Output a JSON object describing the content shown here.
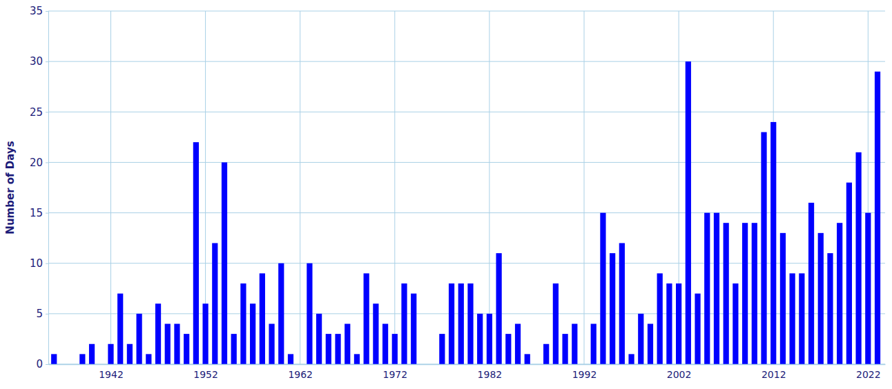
{
  "chart_data": {
    "type": "bar",
    "y_label": "Number of Days",
    "x": [
      1936,
      1937,
      1938,
      1939,
      1940,
      1941,
      1942,
      1943,
      1944,
      1945,
      1946,
      1947,
      1948,
      1949,
      1950,
      1951,
      1952,
      1953,
      1954,
      1955,
      1956,
      1957,
      1958,
      1959,
      1960,
      1961,
      1962,
      1963,
      1964,
      1965,
      1966,
      1967,
      1968,
      1969,
      1970,
      1971,
      1972,
      1973,
      1974,
      1975,
      1976,
      1977,
      1978,
      1979,
      1980,
      1981,
      1982,
      1983,
      1984,
      1985,
      1986,
      1987,
      1988,
      1989,
      1990,
      1991,
      1992,
      1993,
      1994,
      1995,
      1996,
      1997,
      1998,
      1999,
      2000,
      2001,
      2002,
      2003,
      2004,
      2005,
      2006,
      2007,
      2008,
      2009,
      2010,
      2011,
      2012,
      2013,
      2014,
      2015,
      2016,
      2017,
      2018,
      2019,
      2020,
      2021,
      2022,
      2023
    ],
    "values": [
      1,
      0,
      0,
      1,
      2,
      0,
      2,
      7,
      2,
      5,
      1,
      6,
      4,
      4,
      3,
      22,
      6,
      12,
      20,
      3,
      8,
      6,
      9,
      4,
      10,
      1,
      0,
      10,
      5,
      3,
      3,
      4,
      1,
      9,
      6,
      4,
      3,
      8,
      7,
      0,
      0,
      3,
      8,
      8,
      8,
      5,
      5,
      11,
      3,
      4,
      1,
      0,
      2,
      8,
      3,
      4,
      0,
      4,
      15,
      11,
      12,
      1,
      5,
      4,
      9,
      8,
      8,
      30,
      7,
      15,
      15,
      14,
      8,
      14,
      14,
      23,
      24,
      13,
      9,
      9,
      16,
      13,
      11,
      14,
      18,
      21,
      15,
      29
    ],
    "color": "#0000ff",
    "xlim": [
      1935.4,
      2023.8
    ],
    "xticks": [
      1942,
      1952,
      1962,
      1972,
      1982,
      1992,
      2002,
      2012,
      2022
    ],
    "ylim": [
      0,
      35
    ],
    "yticks": [
      0,
      5,
      10,
      15,
      20,
      25,
      30,
      35
    ],
    "grid": true
  }
}
